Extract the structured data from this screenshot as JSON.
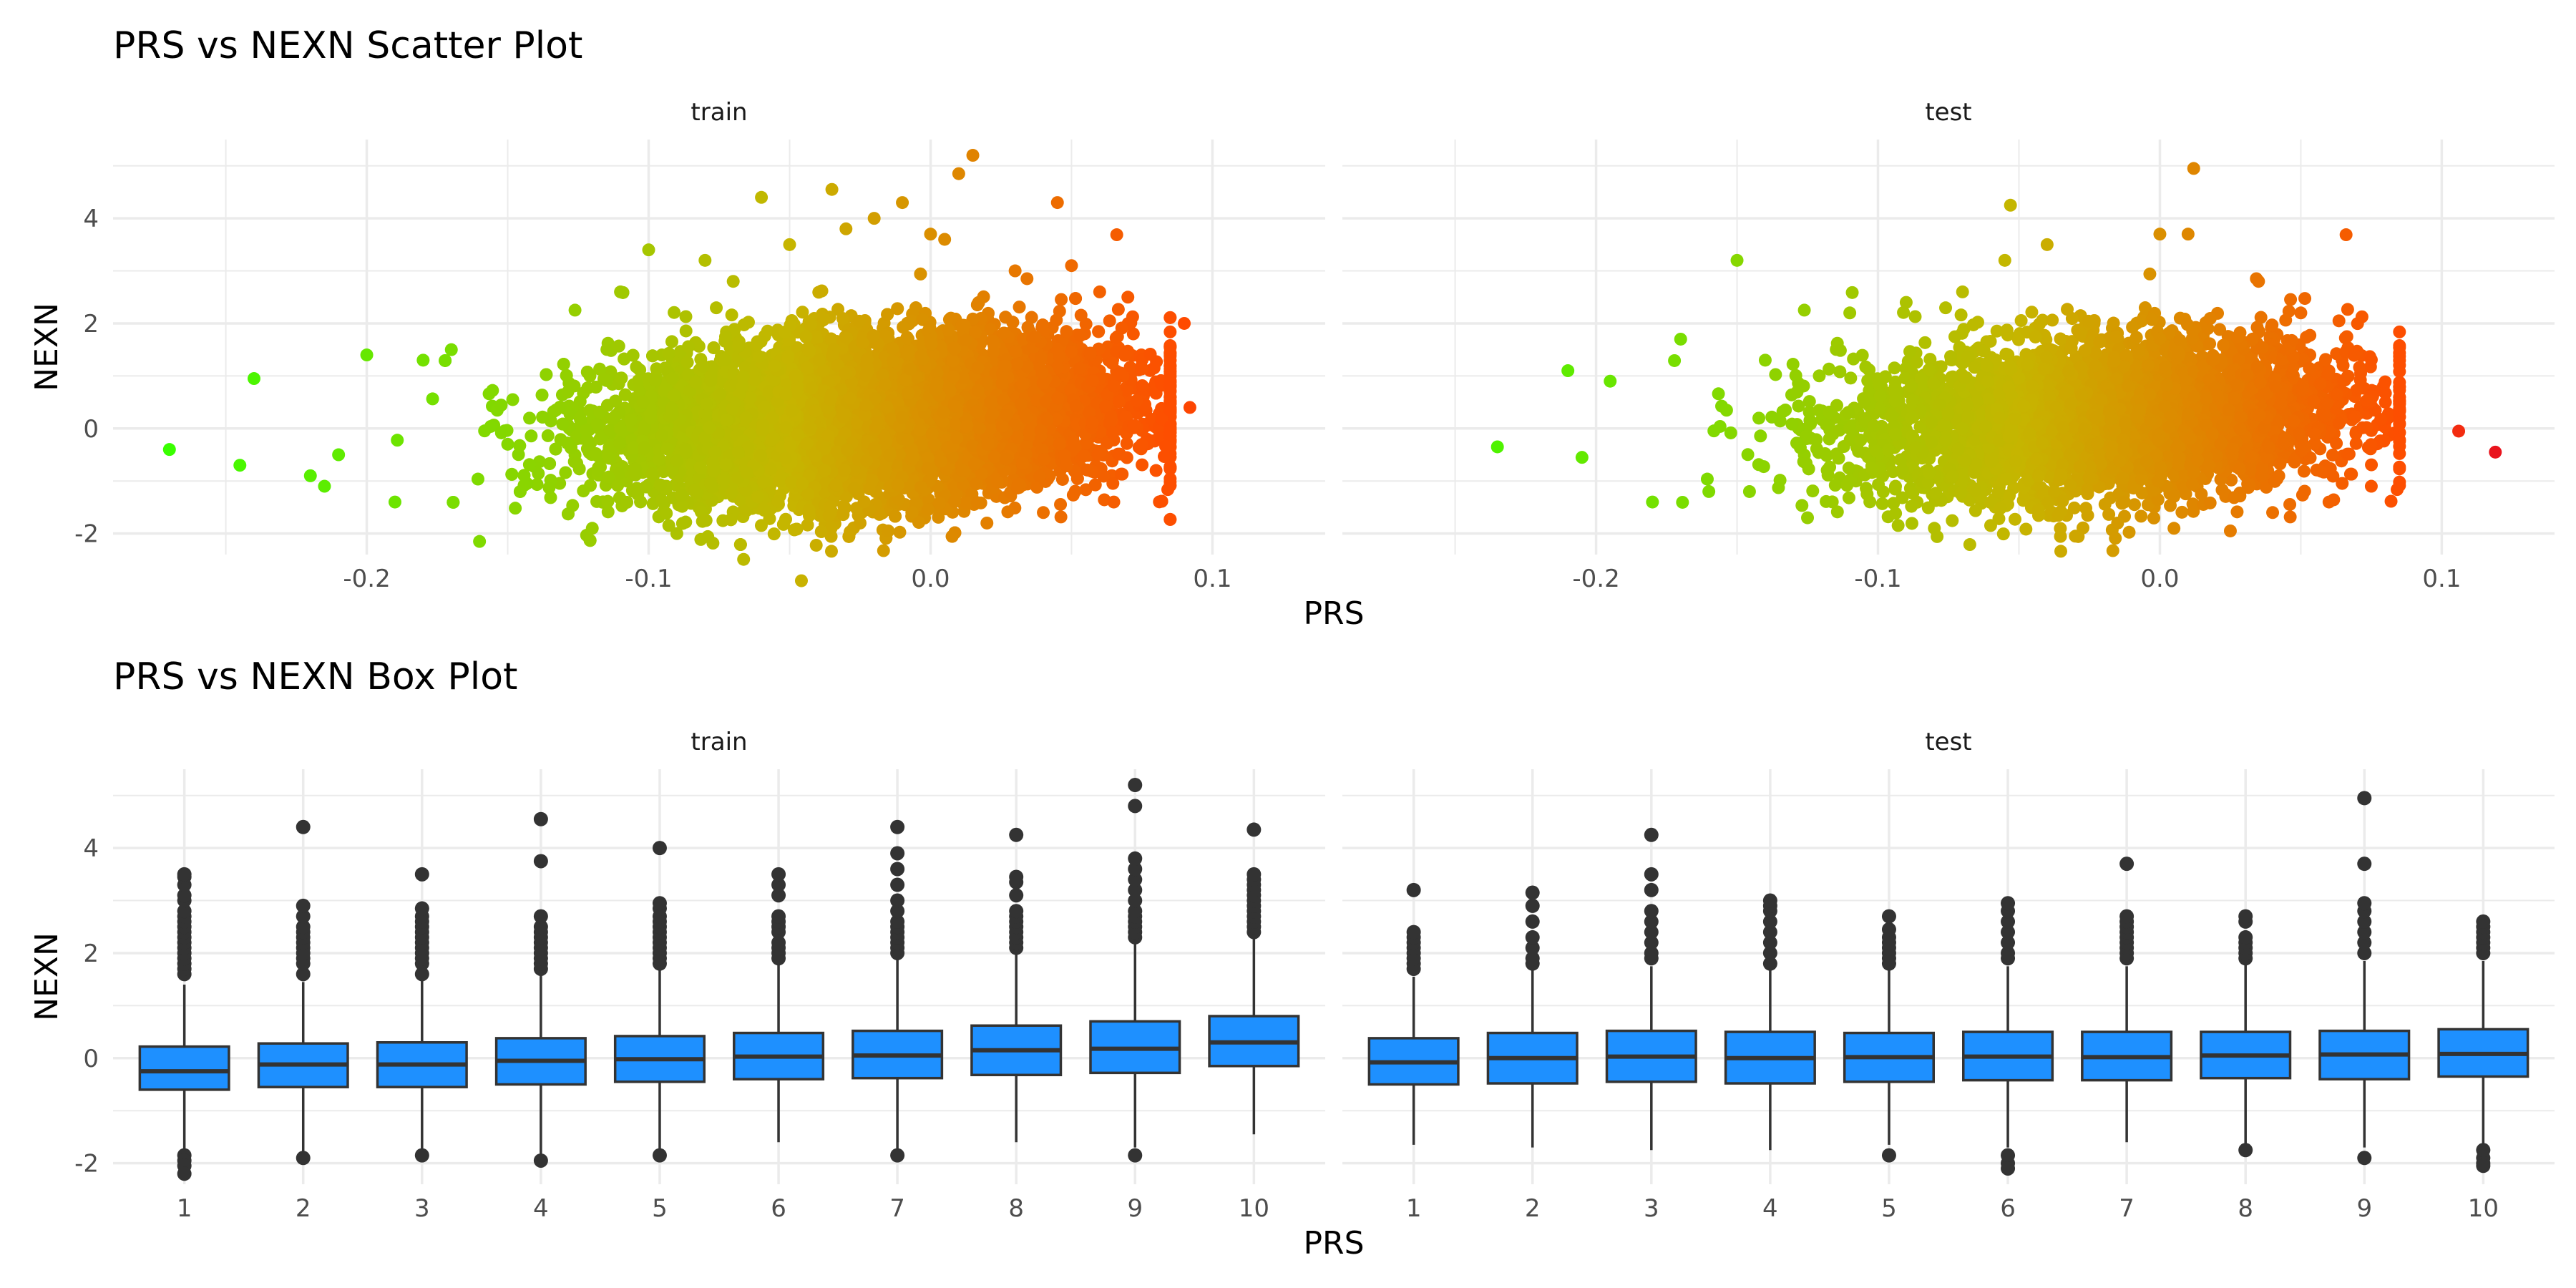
{
  "colors": {
    "low": "#39ff00",
    "mid": "#c6b500",
    "high": "#ff4a00",
    "extreme": "#e8121e",
    "box_fill": "#1e90ff",
    "box_line": "#333333",
    "grid": "#ebebeb"
  },
  "chart_data": [
    {
      "type": "scatter",
      "title": "PRS vs NEXN Scatter Plot",
      "xlabel": "PRS",
      "ylabel": "NEXN",
      "xlim": [
        -0.29,
        0.14
      ],
      "ylim": [
        -2.4,
        5.5
      ],
      "xticks": [
        -0.2,
        -0.1,
        0.0,
        0.1
      ],
      "xtick_labels": [
        "-0.2",
        "-0.1",
        "0.0",
        "0.1"
      ],
      "yticks": [
        -2,
        0,
        2,
        4
      ],
      "ytick_labels": [
        "-2",
        "0",
        "2",
        "4"
      ],
      "grid": true,
      "color_scale": "green-to-red by PRS",
      "panels": [
        {
          "label": "train",
          "points": [
            [
              -0.27,
              -0.4
            ],
            [
              -0.245,
              -0.7
            ],
            [
              -0.24,
              0.95
            ],
            [
              -0.22,
              -0.9
            ],
            [
              -0.215,
              -1.1
            ],
            [
              -0.21,
              -0.5
            ],
            [
              -0.2,
              1.4
            ],
            [
              -0.19,
              -1.4
            ],
            [
              -0.18,
              1.3
            ],
            [
              -0.17,
              1.5
            ],
            [
              -0.16,
              -2.15
            ],
            [
              -0.15,
              -0.3
            ],
            [
              -0.12,
              -1.9
            ],
            [
              -0.11,
              2.6
            ],
            [
              -0.1,
              3.4
            ],
            [
              -0.09,
              -2.0
            ],
            [
              -0.08,
              3.2
            ],
            [
              -0.07,
              2.8
            ],
            [
              -0.06,
              4.4
            ],
            [
              -0.05,
              3.5
            ],
            [
              -0.035,
              4.55
            ],
            [
              -0.03,
              3.8
            ],
            [
              -0.025,
              -1.8
            ],
            [
              -0.02,
              4.0
            ],
            [
              -0.015,
              -1.95
            ],
            [
              -0.01,
              4.3
            ],
            [
              0.0,
              3.7
            ],
            [
              0.005,
              3.6
            ],
            [
              0.01,
              4.85
            ],
            [
              0.015,
              5.2
            ],
            [
              0.02,
              -1.8
            ],
            [
              0.03,
              3.0
            ],
            [
              0.04,
              -1.6
            ],
            [
              0.045,
              4.3
            ],
            [
              0.05,
              3.1
            ],
            [
              0.06,
              2.6
            ],
            [
              0.065,
              -1.4
            ],
            [
              0.07,
              2.5
            ],
            [
              0.08,
              -0.8
            ],
            [
              0.085,
              1.4
            ],
            [
              0.09,
              2.0
            ],
            [
              0.092,
              0.4
            ]
          ]
        },
        {
          "label": "test",
          "points": [
            [
              -0.235,
              -0.35
            ],
            [
              -0.21,
              1.1
            ],
            [
              -0.205,
              -0.55
            ],
            [
              -0.195,
              0.9
            ],
            [
              -0.18,
              -1.4
            ],
            [
              -0.17,
              1.7
            ],
            [
              -0.16,
              -1.2
            ],
            [
              -0.15,
              3.2
            ],
            [
              -0.14,
              1.3
            ],
            [
              -0.125,
              -1.7
            ],
            [
              -0.11,
              2.2
            ],
            [
              -0.09,
              2.4
            ],
            [
              -0.08,
              -1.9
            ],
            [
              -0.07,
              2.6
            ],
            [
              -0.055,
              3.2
            ],
            [
              -0.053,
              4.25
            ],
            [
              -0.04,
              3.5
            ],
            [
              -0.03,
              -2.05
            ],
            [
              -0.015,
              -1.8
            ],
            [
              0.0,
              3.7
            ],
            [
              0.005,
              -1.9
            ],
            [
              0.01,
              3.7
            ],
            [
              0.012,
              4.95
            ],
            [
              0.025,
              -1.95
            ],
            [
              0.035,
              2.8
            ],
            [
              0.04,
              -1.6
            ],
            [
              0.05,
              2.2
            ],
            [
              0.06,
              -1.4
            ],
            [
              0.065,
              1.2
            ],
            [
              0.075,
              -1.1
            ],
            [
              0.08,
              0.5
            ],
            [
              0.085,
              0.1
            ],
            [
              0.106,
              -0.05
            ],
            [
              0.119,
              -0.45
            ]
          ]
        }
      ]
    },
    {
      "type": "box",
      "title": "PRS vs NEXN Box Plot",
      "xlabel": "PRS",
      "ylabel": "NEXN",
      "categories": [
        "1",
        "2",
        "3",
        "4",
        "5",
        "6",
        "7",
        "8",
        "9",
        "10"
      ],
      "ylim": [
        -2.4,
        5.5
      ],
      "yticks": [
        -2,
        0,
        2,
        4
      ],
      "ytick_labels": [
        "-2",
        "0",
        "2",
        "4"
      ],
      "grid": true,
      "panels": [
        {
          "label": "train",
          "boxes": [
            {
              "q1": -0.6,
              "median": -0.25,
              "q3": 0.22,
              "low": -1.8,
              "high": 1.4,
              "outliers": [
                1.6,
                1.7,
                1.8,
                1.9,
                2.0,
                2.1,
                2.2,
                2.3,
                2.4,
                2.5,
                2.6,
                2.7,
                2.8,
                3.0,
                3.1,
                3.3,
                3.45,
                3.5,
                -1.85,
                -1.95,
                -2.05,
                -2.2
              ]
            },
            {
              "q1": -0.55,
              "median": -0.12,
              "q3": 0.28,
              "low": -1.8,
              "high": 1.45,
              "outliers": [
                1.6,
                1.8,
                1.9,
                2.0,
                2.1,
                2.2,
                2.3,
                2.4,
                2.5,
                2.7,
                2.9,
                4.4,
                -1.9
              ]
            },
            {
              "q1": -0.55,
              "median": -0.12,
              "q3": 0.3,
              "low": -1.8,
              "high": 1.5,
              "outliers": [
                1.6,
                1.8,
                1.9,
                2.0,
                2.1,
                2.2,
                2.3,
                2.4,
                2.5,
                2.6,
                2.7,
                2.85,
                3.5,
                -1.85
              ]
            },
            {
              "q1": -0.5,
              "median": -0.05,
              "q3": 0.38,
              "low": -1.9,
              "high": 1.6,
              "outliers": [
                1.7,
                1.8,
                1.9,
                2.0,
                2.1,
                2.2,
                2.3,
                2.4,
                2.5,
                2.7,
                3.75,
                4.55,
                -1.95
              ]
            },
            {
              "q1": -0.45,
              "median": -0.02,
              "q3": 0.42,
              "low": -1.8,
              "high": 1.7,
              "outliers": [
                1.8,
                1.9,
                2.0,
                2.1,
                2.2,
                2.3,
                2.4,
                2.5,
                2.6,
                2.7,
                2.85,
                2.95,
                4.0,
                -1.85
              ]
            },
            {
              "q1": -0.4,
              "median": 0.03,
              "q3": 0.48,
              "low": -1.6,
              "high": 1.8,
              "outliers": [
                1.9,
                2.0,
                2.1,
                2.2,
                2.4,
                2.5,
                2.6,
                2.7,
                3.1,
                3.3,
                3.5
              ]
            },
            {
              "q1": -0.38,
              "median": 0.05,
              "q3": 0.52,
              "low": -1.75,
              "high": 1.9,
              "outliers": [
                2.0,
                2.1,
                2.2,
                2.3,
                2.4,
                2.5,
                2.6,
                2.8,
                3.0,
                3.3,
                3.6,
                3.9,
                4.4,
                -1.85
              ]
            },
            {
              "q1": -0.32,
              "median": 0.15,
              "q3": 0.62,
              "low": -1.6,
              "high": 2.0,
              "outliers": [
                2.1,
                2.2,
                2.3,
                2.4,
                2.5,
                2.6,
                2.7,
                2.8,
                3.1,
                3.35,
                3.45,
                4.25
              ]
            },
            {
              "q1": -0.28,
              "median": 0.18,
              "q3": 0.7,
              "low": -1.7,
              "high": 2.2,
              "outliers": [
                2.3,
                2.4,
                2.5,
                2.6,
                2.7,
                2.8,
                3.0,
                3.2,
                3.4,
                3.6,
                3.8,
                4.8,
                5.2,
                -1.85
              ]
            },
            {
              "q1": -0.15,
              "median": 0.3,
              "q3": 0.8,
              "low": -1.45,
              "high": 2.3,
              "outliers": [
                2.4,
                2.5,
                2.6,
                2.7,
                2.8,
                2.9,
                3.0,
                3.1,
                3.2,
                3.3,
                3.4,
                3.5,
                4.35
              ]
            }
          ]
        },
        {
          "label": "test",
          "boxes": [
            {
              "q1": -0.5,
              "median": -0.08,
              "q3": 0.38,
              "low": -1.65,
              "high": 1.55,
              "outliers": [
                1.7,
                1.8,
                1.9,
                2.0,
                2.1,
                2.2,
                2.3,
                2.4,
                3.2
              ]
            },
            {
              "q1": -0.48,
              "median": 0.0,
              "q3": 0.48,
              "low": -1.7,
              "high": 1.7,
              "outliers": [
                1.8,
                1.9,
                2.1,
                2.3,
                2.6,
                2.9,
                3.15
              ]
            },
            {
              "q1": -0.45,
              "median": 0.03,
              "q3": 0.52,
              "low": -1.75,
              "high": 1.75,
              "outliers": [
                1.9,
                2.0,
                2.2,
                2.4,
                2.6,
                2.8,
                3.2,
                3.5,
                4.25
              ]
            },
            {
              "q1": -0.48,
              "median": 0.0,
              "q3": 0.5,
              "low": -1.75,
              "high": 1.7,
              "outliers": [
                1.8,
                2.0,
                2.2,
                2.4,
                2.6,
                2.8,
                2.9,
                3.0
              ]
            },
            {
              "q1": -0.45,
              "median": 0.02,
              "q3": 0.48,
              "low": -1.65,
              "high": 1.7,
              "outliers": [
                1.8,
                1.9,
                2.0,
                2.1,
                2.2,
                2.3,
                2.45,
                2.7,
                -1.85
              ]
            },
            {
              "q1": -0.42,
              "median": 0.03,
              "q3": 0.5,
              "low": -1.7,
              "high": 1.75,
              "outliers": [
                1.9,
                2.0,
                2.2,
                2.4,
                2.6,
                2.8,
                2.95,
                -1.85,
                -2.0,
                -2.1
              ]
            },
            {
              "q1": -0.42,
              "median": 0.02,
              "q3": 0.5,
              "low": -1.6,
              "high": 1.75,
              "outliers": [
                1.9,
                2.0,
                2.1,
                2.2,
                2.3,
                2.4,
                2.5,
                2.6,
                2.7,
                3.7
              ]
            },
            {
              "q1": -0.38,
              "median": 0.05,
              "q3": 0.5,
              "low": -1.65,
              "high": 1.8,
              "outliers": [
                1.9,
                2.0,
                2.1,
                2.2,
                2.3,
                2.6,
                2.7,
                -1.75
              ]
            },
            {
              "q1": -0.4,
              "median": 0.07,
              "q3": 0.52,
              "low": -1.7,
              "high": 1.85,
              "outliers": [
                2.0,
                2.2,
                2.4,
                2.6,
                2.8,
                2.95,
                3.7,
                4.95,
                -1.9
              ]
            },
            {
              "q1": -0.35,
              "median": 0.08,
              "q3": 0.55,
              "low": -1.65,
              "high": 1.85,
              "outliers": [
                2.0,
                2.1,
                2.2,
                2.3,
                2.4,
                2.5,
                2.6,
                -1.75,
                -1.9,
                -2.0,
                -2.05
              ]
            }
          ]
        }
      ]
    }
  ]
}
